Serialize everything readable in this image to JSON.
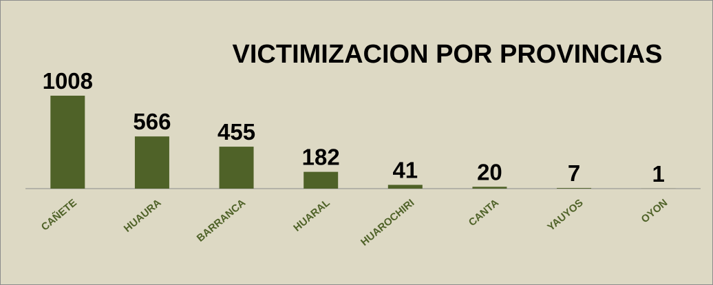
{
  "chart_data": {
    "type": "bar",
    "title": "VICTIMIZACION POR PROVINCIAS",
    "categories": [
      "CAÑETE",
      "HUAURA",
      "BARRANCA",
      "HUARAL",
      "HUAROCHIRI",
      "CANTA",
      "YAUYOS",
      "OYON"
    ],
    "values": [
      1008,
      566,
      455,
      182,
      41,
      20,
      7,
      1
    ],
    "color": "#4f6228",
    "background": "#ddd9c4"
  }
}
